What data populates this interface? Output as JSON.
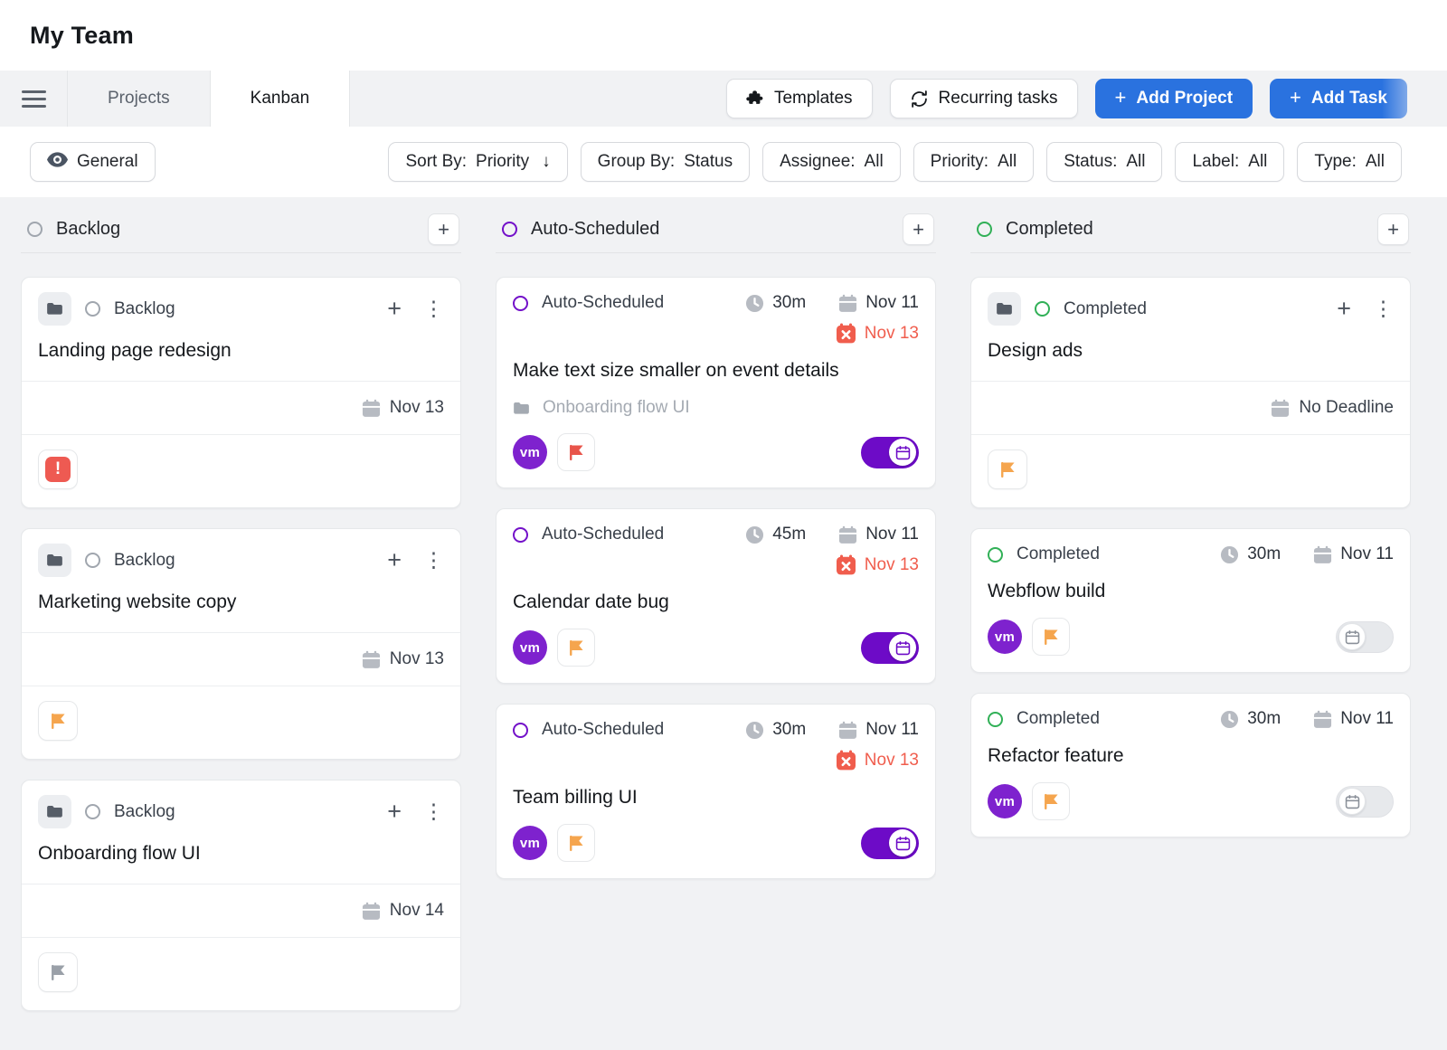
{
  "header": {
    "title": "My Team"
  },
  "tabbar": {
    "tabs": [
      {
        "label": "Projects",
        "active": false
      },
      {
        "label": "Kanban",
        "active": true
      }
    ],
    "buttons": [
      {
        "label": "Templates",
        "icon": "puzzle-icon",
        "style": "plain"
      },
      {
        "label": "Recurring tasks",
        "icon": "refresh-icon",
        "style": "plain"
      },
      {
        "label": "Add Project",
        "icon": "plus-icon",
        "style": "primary"
      },
      {
        "label": "Add Task",
        "icon": "plus-icon",
        "style": "primary"
      }
    ]
  },
  "filter_bar": {
    "view": {
      "label": "General",
      "icon": "eye-icon"
    },
    "chips": [
      {
        "label": "Sort By:",
        "value": "Priority",
        "icon": "arrow-down-icon"
      },
      {
        "label": "Group By:",
        "value": "Status"
      },
      {
        "label": "Assignee:",
        "value": "All"
      },
      {
        "label": "Priority:",
        "value": "All"
      },
      {
        "label": "Status:",
        "value": "All"
      },
      {
        "label": "Label:",
        "value": "All"
      },
      {
        "label": "Type:",
        "value": "All"
      }
    ]
  },
  "colors": {
    "accent_blue": "#2a72df",
    "backlog_gray": "#a0a6ae",
    "auto_scheduled_purple": "#7311c9",
    "completed_green": "#31b057",
    "toggle_purple": "#6d0bc7",
    "avatar_purple": "#7e22ce",
    "overdue_red": "#f05d4d",
    "asap_red": "#ee5a52",
    "flag_orange": "#f5a54e",
    "flag_red": "#e8544a",
    "flag_gray": "#9aa0a8",
    "icon_gray": "#b7bbc2"
  },
  "board": {
    "columns": [
      {
        "name": "Backlog",
        "status_color": "#a0a6ae",
        "cards": [
          {
            "kind": "project",
            "status": "Backlog",
            "status_color": "#a0a6ae",
            "title": "Landing page redesign",
            "deadline": "Nov 13",
            "badge": {
              "icon": "exclamation-icon",
              "color": "#ee5a52"
            }
          },
          {
            "kind": "project",
            "status": "Backlog",
            "status_color": "#a0a6ae",
            "title": "Marketing website copy",
            "deadline": "Nov 13",
            "badge": {
              "icon": "flag-icon",
              "color": "#f5a54e"
            }
          },
          {
            "kind": "project",
            "status": "Backlog",
            "status_color": "#a0a6ae",
            "title": "Onboarding flow UI",
            "deadline": "Nov 14",
            "badge": {
              "icon": "flag-icon",
              "color": "#9aa0a8"
            }
          }
        ]
      },
      {
        "name": "Auto-Scheduled",
        "status_color": "#7311c9",
        "cards": [
          {
            "kind": "task",
            "status": "Auto-Scheduled",
            "status_color": "#7311c9",
            "duration": "30m",
            "scheduled": "Nov 11",
            "overdue": "Nov 13",
            "title": "Make text size smaller on event details",
            "project": "Onboarding flow UI",
            "assignee": "vm",
            "flag_color": "#e8544a",
            "auto_schedule_on": true
          },
          {
            "kind": "task",
            "status": "Auto-Scheduled",
            "status_color": "#7311c9",
            "duration": "45m",
            "scheduled": "Nov 11",
            "overdue": "Nov 13",
            "title": "Calendar date bug",
            "assignee": "vm",
            "flag_color": "#f5a54e",
            "auto_schedule_on": true
          },
          {
            "kind": "task",
            "status": "Auto-Scheduled",
            "status_color": "#7311c9",
            "duration": "30m",
            "scheduled": "Nov 11",
            "overdue": "Nov 13",
            "title": "Team billing UI",
            "assignee": "vm",
            "flag_color": "#f5a54e",
            "auto_schedule_on": true
          }
        ]
      },
      {
        "name": "Completed",
        "status_color": "#31b057",
        "cards": [
          {
            "kind": "project",
            "status": "Completed",
            "status_color": "#31b057",
            "title": "Design ads",
            "deadline": "No Deadline",
            "badge": {
              "icon": "flag-icon",
              "color": "#f5a54e"
            }
          },
          {
            "kind": "task",
            "status": "Completed",
            "status_color": "#31b057",
            "duration": "30m",
            "scheduled": "Nov 11",
            "title": "Webflow build",
            "assignee": "vm",
            "flag_color": "#f5a54e",
            "auto_schedule_on": false
          },
          {
            "kind": "task",
            "status": "Completed",
            "status_color": "#31b057",
            "duration": "30m",
            "scheduled": "Nov 11",
            "title": "Refactor feature",
            "assignee": "vm",
            "flag_color": "#f5a54e",
            "auto_schedule_on": false
          }
        ]
      }
    ]
  }
}
